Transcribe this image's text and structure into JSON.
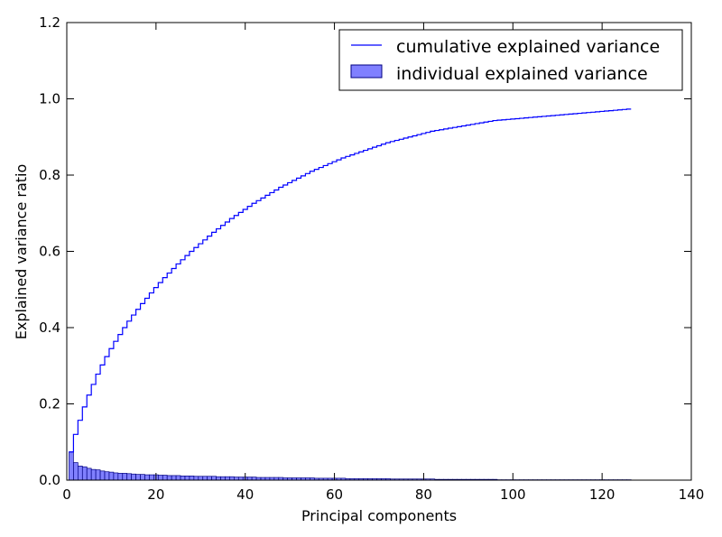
{
  "chart_data": {
    "type": "bar",
    "title": "",
    "xlabel": "Principal components",
    "ylabel": "Explained variance ratio",
    "xlim": [
      0,
      140
    ],
    "ylim": [
      0,
      1.2
    ],
    "xticks": [
      0,
      20,
      40,
      60,
      80,
      100,
      120,
      140
    ],
    "yticks": [
      0.0,
      0.2,
      0.4,
      0.6,
      0.8,
      1.0,
      1.2
    ],
    "xtick_labels": [
      "0",
      "20",
      "40",
      "60",
      "80",
      "100",
      "120",
      "140"
    ],
    "ytick_labels": [
      "0.0",
      "0.2",
      "0.4",
      "0.6",
      "0.8",
      "1.0",
      "1.2"
    ],
    "grid": false,
    "legend_position": "top-right",
    "series": [
      {
        "name": "cumulative explained variance",
        "type": "step",
        "color": "#0000ff"
      },
      {
        "name": "individual explained variance",
        "type": "bar",
        "color": "#8080ff"
      }
    ],
    "x": [
      1,
      2,
      3,
      4,
      5,
      6,
      7,
      8,
      9,
      10,
      11,
      12,
      13,
      14,
      15,
      16,
      17,
      18,
      19,
      20,
      21,
      22,
      23,
      24,
      25,
      26,
      27,
      28,
      29,
      30,
      31,
      32,
      33,
      34,
      35,
      36,
      37,
      38,
      39,
      40,
      41,
      42,
      43,
      44,
      45,
      46,
      47,
      48,
      49,
      50,
      51,
      52,
      53,
      54,
      55,
      56,
      57,
      58,
      59,
      60,
      61,
      62,
      63,
      64,
      65,
      66,
      67,
      68,
      69,
      70,
      71,
      72,
      73,
      74,
      75,
      76,
      77,
      78,
      79,
      80,
      81,
      82,
      83,
      84,
      85,
      86,
      87,
      88,
      89,
      90,
      91,
      92,
      93,
      94,
      95,
      96,
      97,
      98,
      99,
      100,
      101,
      102,
      103,
      104,
      105,
      106,
      107,
      108,
      109,
      110,
      111,
      112,
      113,
      114,
      115,
      116,
      117,
      118,
      119,
      120,
      121,
      122,
      123,
      124,
      125,
      126
    ],
    "individual": [
      0.074,
      0.046,
      0.037,
      0.035,
      0.031,
      0.028,
      0.027,
      0.024,
      0.022,
      0.021,
      0.019,
      0.018,
      0.018,
      0.017,
      0.016,
      0.015,
      0.015,
      0.014,
      0.014,
      0.014,
      0.013,
      0.013,
      0.012,
      0.012,
      0.012,
      0.011,
      0.011,
      0.011,
      0.01,
      0.01,
      0.01,
      0.01,
      0.01,
      0.009,
      0.009,
      0.009,
      0.009,
      0.008,
      0.008,
      0.008,
      0.008,
      0.008,
      0.007,
      0.007,
      0.007,
      0.007,
      0.007,
      0.007,
      0.006,
      0.006,
      0.006,
      0.006,
      0.006,
      0.006,
      0.006,
      0.005,
      0.005,
      0.005,
      0.005,
      0.005,
      0.005,
      0.005,
      0.004,
      0.004,
      0.004,
      0.004,
      0.004,
      0.004,
      0.004,
      0.004,
      0.004,
      0.004,
      0.003,
      0.003,
      0.003,
      0.003,
      0.003,
      0.003,
      0.003,
      0.003,
      0.003,
      0.003,
      0.002,
      0.002,
      0.002,
      0.002,
      0.002,
      0.002,
      0.002,
      0.002,
      0.002,
      0.002,
      0.002,
      0.002,
      0.002,
      0.002,
      0.001,
      0.001,
      0.001,
      0.001,
      0.001,
      0.001,
      0.001,
      0.001,
      0.001,
      0.001,
      0.001,
      0.001,
      0.001,
      0.001,
      0.001,
      0.001,
      0.001,
      0.001,
      0.001,
      0.001,
      0.001,
      0.001,
      0.001,
      0.001,
      0.001,
      0.001,
      0.001,
      0.001,
      0.001,
      0.001
    ],
    "cumulative": [
      0.074,
      0.12,
      0.157,
      0.192,
      0.223,
      0.251,
      0.278,
      0.302,
      0.324,
      0.345,
      0.364,
      0.382,
      0.4,
      0.417,
      0.433,
      0.448,
      0.463,
      0.477,
      0.491,
      0.505,
      0.518,
      0.531,
      0.543,
      0.555,
      0.567,
      0.578,
      0.589,
      0.6,
      0.61,
      0.62,
      0.63,
      0.64,
      0.65,
      0.659,
      0.668,
      0.677,
      0.686,
      0.694,
      0.702,
      0.71,
      0.718,
      0.726,
      0.733,
      0.74,
      0.747,
      0.754,
      0.761,
      0.768,
      0.774,
      0.78,
      0.786,
      0.792,
      0.798,
      0.804,
      0.81,
      0.815,
      0.82,
      0.825,
      0.83,
      0.835,
      0.84,
      0.845,
      0.849,
      0.853,
      0.857,
      0.861,
      0.865,
      0.869,
      0.873,
      0.877,
      0.881,
      0.885,
      0.888,
      0.891,
      0.894,
      0.897,
      0.9,
      0.903,
      0.906,
      0.909,
      0.912,
      0.915,
      0.917,
      0.919,
      0.921,
      0.923,
      0.925,
      0.927,
      0.929,
      0.931,
      0.933,
      0.935,
      0.937,
      0.939,
      0.941,
      0.943,
      0.944,
      0.945,
      0.946,
      0.947,
      0.948,
      0.949,
      0.95,
      0.951,
      0.952,
      0.953,
      0.954,
      0.955,
      0.956,
      0.957,
      0.958,
      0.959,
      0.96,
      0.961,
      0.962,
      0.963,
      0.964,
      0.965,
      0.966,
      0.967,
      0.968,
      0.969,
      0.97,
      0.971,
      0.972,
      0.973
    ]
  }
}
